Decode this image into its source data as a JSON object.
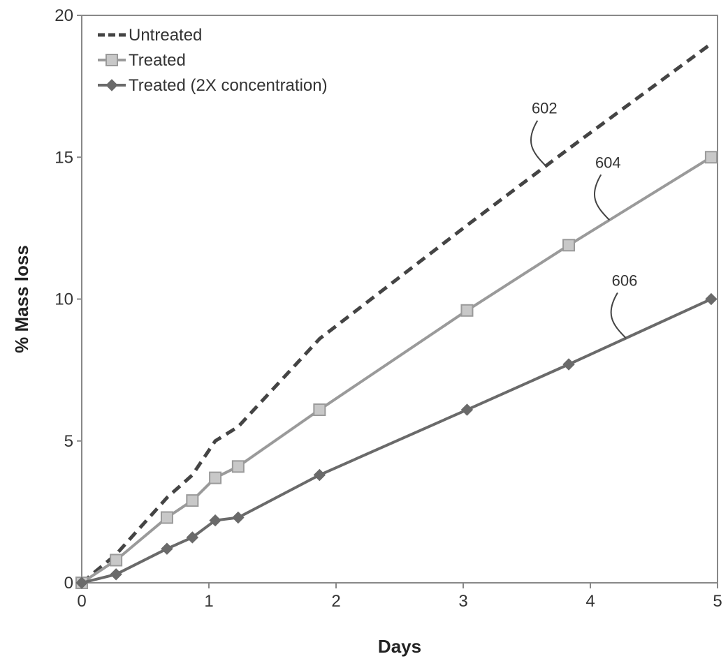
{
  "chart_data": {
    "type": "line",
    "title": "",
    "xlabel": "Days",
    "ylabel": "% Mass loss",
    "xlim": [
      0,
      5
    ],
    "ylim": [
      0,
      20
    ],
    "xticks": [
      "0",
      "1",
      "2",
      "3",
      "4",
      "5"
    ],
    "yticks": [
      "0",
      "5",
      "10",
      "15",
      "20"
    ],
    "grid": false,
    "legend_position": "top-left",
    "series": [
      {
        "name": "Untreated",
        "style": "dashed",
        "marker": "none",
        "color": "#444444",
        "x": [
          0,
          0.27,
          0.67,
          0.87,
          1.05,
          1.23,
          1.87,
          3.03,
          3.83,
          4.95
        ],
        "y": [
          0,
          1.0,
          3.0,
          3.8,
          5.0,
          5.5,
          8.6,
          12.6,
          15.3,
          19.0
        ]
      },
      {
        "name": "Treated",
        "style": "solid",
        "marker": "square",
        "color": "#9a9a9a",
        "x": [
          0,
          0.27,
          0.67,
          0.87,
          1.05,
          1.23,
          1.87,
          3.03,
          3.83,
          4.95
        ],
        "y": [
          0,
          0.8,
          2.3,
          2.9,
          3.7,
          4.1,
          6.1,
          9.6,
          11.9,
          15.0
        ]
      },
      {
        "name": "Treated (2X concentration)",
        "style": "solid",
        "marker": "diamond",
        "color": "#6a6a6a",
        "x": [
          0,
          0.27,
          0.67,
          0.87,
          1.05,
          1.23,
          1.87,
          3.03,
          3.83,
          4.95
        ],
        "y": [
          0,
          0.3,
          1.2,
          1.6,
          2.2,
          2.3,
          3.8,
          6.1,
          7.7,
          10.0
        ]
      }
    ],
    "annotations": [
      {
        "text": "602",
        "series": 0,
        "at_x": 3.65
      },
      {
        "text": "604",
        "series": 1,
        "at_x": 4.15
      },
      {
        "text": "606",
        "series": 2,
        "at_x": 4.28
      }
    ]
  }
}
